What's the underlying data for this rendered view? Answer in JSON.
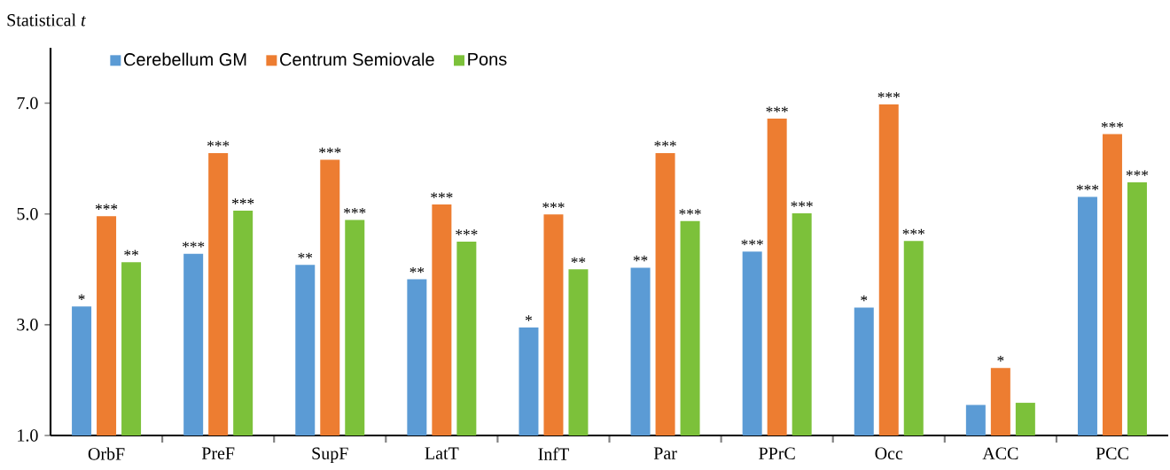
{
  "chart_data": {
    "type": "bar",
    "ylabel": "Statistical *t*",
    "categories": [
      "OrbF",
      "PreF",
      "SupF",
      "LatT",
      "InfT",
      "Par",
      "PPrC",
      "Occ",
      "ACC",
      "PCC"
    ],
    "series": [
      {
        "name": "Cerebellum GM",
        "color": "#5b9bd5",
        "values": [
          3.33,
          4.28,
          4.08,
          3.82,
          2.95,
          4.03,
          4.32,
          3.31,
          1.55,
          5.31
        ],
        "value_labels": [
          "*",
          "***",
          "**",
          "**",
          "*",
          "**",
          "***",
          "*",
          null,
          "***"
        ]
      },
      {
        "name": "Centrum Semiovale",
        "color": "#ed7d31",
        "values": [
          4.96,
          6.1,
          5.98,
          5.17,
          4.99,
          6.1,
          6.72,
          6.98,
          2.22,
          6.44
        ],
        "value_labels": [
          "***",
          "***",
          "***",
          "***",
          "***",
          "***",
          "***",
          "***",
          "*",
          "***"
        ]
      },
      {
        "name": "Pons",
        "color": "#7cc13a",
        "values": [
          4.13,
          5.06,
          4.89,
          4.5,
          4.0,
          4.87,
          5.01,
          4.51,
          1.59,
          5.57
        ],
        "value_labels": [
          "**",
          "***",
          "***",
          "***",
          "**",
          "***",
          "***",
          "***",
          null,
          "***"
        ]
      }
    ],
    "ylim": [
      1,
      8
    ],
    "yticks": [
      {
        "value": 1,
        "label": "1.0"
      },
      {
        "value": 3,
        "label": "3.0"
      },
      {
        "value": 5,
        "label": "5.0"
      },
      {
        "value": 7,
        "label": "7.0"
      }
    ],
    "grid": false,
    "legend": "top left"
  }
}
